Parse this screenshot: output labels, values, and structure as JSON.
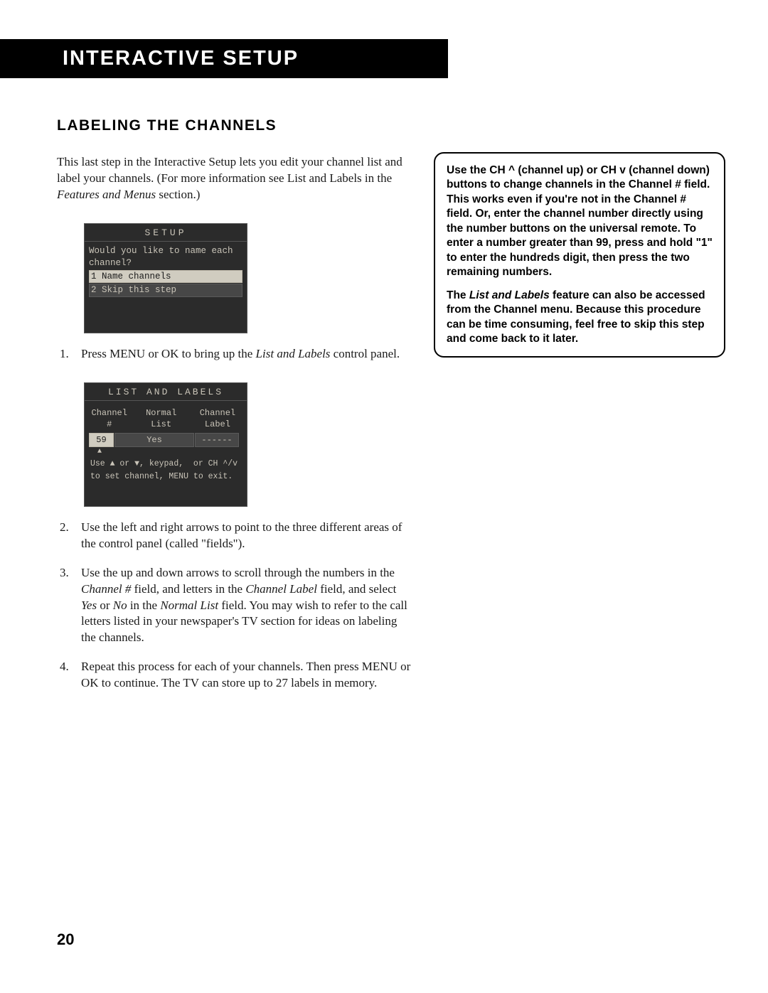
{
  "header": {
    "title": "INTERACTIVE SETUP"
  },
  "section": {
    "title": "LABELING THE CHANNELS"
  },
  "intro": {
    "text_a": "This last step in the Interactive Setup lets you edit your channel list and label your channels. (For more information see List and Labels in the ",
    "text_b_italic": "Features and Menus",
    "text_c": " section.)"
  },
  "tip": {
    "para1": "Use the CH ^ (channel up) or CH v (channel down) buttons to change channels in the Channel # field. This works even if you're not in the Channel # field. Or, enter the channel number directly using the number buttons on the universal remote. To enter a number greater than 99, press and hold \"1\" to enter the hundreds digit, then press the two remaining numbers.",
    "para2_a": "The ",
    "para2_b_italic": "List and Labels",
    "para2_c": " feature can also be accessed from the Channel menu. Because this procedure can be time consuming, feel free to skip this step and come back to it later."
  },
  "osd_setup": {
    "title": "SETUP",
    "prompt_line1": "Would you like to name each",
    "prompt_line2": "channel?",
    "opt1": "1 Name channels",
    "opt2": "2 Skip this step"
  },
  "osd_list": {
    "title": "LIST AND LABELS",
    "col1_a": "Channel",
    "col1_b": "#",
    "col2_a": "Normal",
    "col2_b": "List",
    "col3_a": "Channel",
    "col3_b": "Label",
    "val1": "59",
    "val2": "Yes",
    "val3": "------",
    "arrow": "▲",
    "hint1": "Use ▲ or ▼, keypad,  or CH ^/v",
    "hint2": "to set channel, MENU to exit."
  },
  "steps": {
    "s1_a": "Press MENU or OK to bring up the ",
    "s1_b_italic": "List and Labels",
    "s1_c": " control panel.",
    "s2": "Use the left and right arrows to point to the three different areas of the control panel (called \"fields\").",
    "s3_a": "Use the up and down arrows to scroll through the numbers in the ",
    "s3_b_italic": "Channel #",
    "s3_c": " field, and letters in the ",
    "s3_d_italic": "Channel Label",
    "s3_e": " field, and select ",
    "s3_f_italic": "Yes",
    "s3_g": " or ",
    "s3_h_italic": "No",
    "s3_i": " in the ",
    "s3_j_italic": "Normal List",
    "s3_k": " field. You may wish to refer to the call letters listed in your newspaper's TV section for ideas on labeling the channels.",
    "s4": "Repeat this process for each of your channels. Then press MENU or OK to continue. The TV can store up to 27 labels in memory."
  },
  "page_number": "20"
}
